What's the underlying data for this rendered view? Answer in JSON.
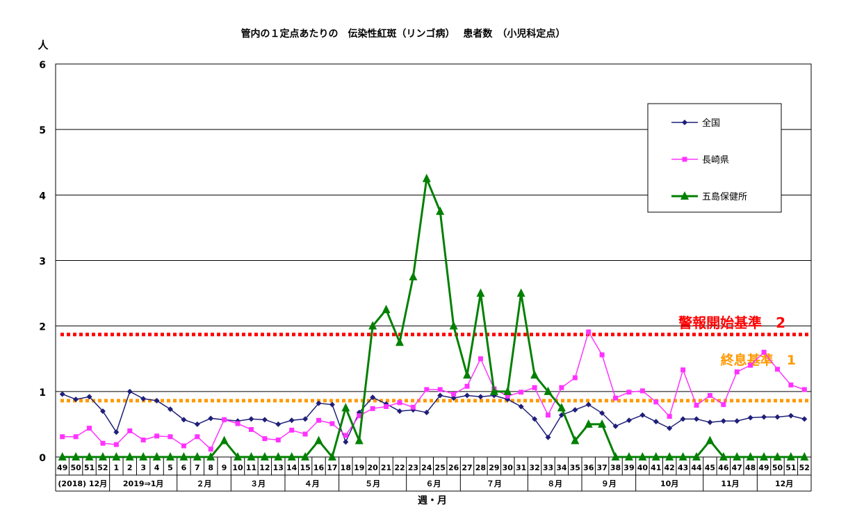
{
  "chart_data": {
    "type": "line",
    "title": "管内の１定点あたりの　伝染性紅斑（リンゴ病）　 患者数　（小児科定点）",
    "ylabel": "人",
    "xlabel": "週・月",
    "ylim": [
      0,
      6
    ],
    "yticks": [
      "0",
      "1",
      "2",
      "3",
      "4",
      "5",
      "6"
    ],
    "grid": true,
    "legend_position": "top-right",
    "weeks": [
      "49",
      "50",
      "51",
      "52",
      "1",
      "2",
      "3",
      "4",
      "5",
      "6",
      "7",
      "8",
      "9",
      "10",
      "11",
      "12",
      "13",
      "14",
      "15",
      "16",
      "17",
      "18",
      "19",
      "20",
      "21",
      "22",
      "23",
      "24",
      "25",
      "26",
      "27",
      "28",
      "29",
      "30",
      "31",
      "32",
      "33",
      "34",
      "35",
      "36",
      "37",
      "38",
      "39",
      "40",
      "41",
      "42",
      "43",
      "44",
      "45",
      "46",
      "47",
      "48",
      "49",
      "50",
      "51",
      "52"
    ],
    "month_groups": [
      {
        "label": "(2018) 12月",
        "start": 0,
        "end": 3
      },
      {
        "label": "2019⇒1月",
        "start": 4,
        "end": 8
      },
      {
        "label": "２月",
        "start": 9,
        "end": 12
      },
      {
        "label": "３月",
        "start": 13,
        "end": 16
      },
      {
        "label": "４月",
        "start": 17,
        "end": 20
      },
      {
        "label": "５月",
        "start": 21,
        "end": 25
      },
      {
        "label": "６月",
        "start": 26,
        "end": 29
      },
      {
        "label": "７月",
        "start": 30,
        "end": 34
      },
      {
        "label": "８月",
        "start": 35,
        "end": 38
      },
      {
        "label": "９月",
        "start": 39,
        "end": 42
      },
      {
        "label": "10月",
        "start": 43,
        "end": 47
      },
      {
        "label": "11月",
        "start": 48,
        "end": 51
      },
      {
        "label": "12月",
        "start": 52,
        "end": 55
      }
    ],
    "series": [
      {
        "name": "全国",
        "color": "#1f1f7a",
        "marker": "diamond",
        "values": [
          0.96,
          0.88,
          0.92,
          0.7,
          0.38,
          1.0,
          0.89,
          0.86,
          0.73,
          0.57,
          0.5,
          0.59,
          0.57,
          0.55,
          0.58,
          0.57,
          0.5,
          0.56,
          0.58,
          0.82,
          0.8,
          0.23,
          0.68,
          0.91,
          0.81,
          0.7,
          0.72,
          0.68,
          0.94,
          0.9,
          0.94,
          0.92,
          0.94,
          0.88,
          0.77,
          0.58,
          0.3,
          0.64,
          0.72,
          0.8,
          0.67,
          0.47,
          0.56,
          0.64,
          0.54,
          0.44,
          0.58,
          0.58,
          0.53,
          0.55,
          0.55,
          0.6,
          0.61,
          0.61,
          0.63,
          0.58
        ]
      },
      {
        "name": "長崎県",
        "color": "#ff33ff",
        "marker": "square",
        "values": [
          0.31,
          0.31,
          0.44,
          0.21,
          0.19,
          0.4,
          0.26,
          0.32,
          0.31,
          0.17,
          0.31,
          0.12,
          0.57,
          0.51,
          0.42,
          0.28,
          0.26,
          0.41,
          0.35,
          0.56,
          0.51,
          0.33,
          0.63,
          0.74,
          0.77,
          0.83,
          0.76,
          1.03,
          1.03,
          0.96,
          1.08,
          1.5,
          1.04,
          0.93,
          0.99,
          1.06,
          0.64,
          1.06,
          1.21,
          1.91,
          1.56,
          0.9,
          0.99,
          1.01,
          0.84,
          0.62,
          1.33,
          0.79,
          0.94,
          0.8,
          1.3,
          1.4,
          1.6,
          1.34,
          1.1,
          1.03
        ]
      },
      {
        "name": "五島保健所",
        "color": "#008000",
        "marker": "triangle",
        "values": [
          0,
          0,
          0,
          0,
          0,
          0,
          0,
          0,
          0,
          0,
          0,
          0,
          0.25,
          0,
          0,
          0,
          0,
          0,
          0,
          0.25,
          0,
          0.75,
          0.25,
          2.0,
          2.25,
          1.75,
          2.75,
          4.25,
          3.75,
          2.0,
          1.25,
          2.5,
          1.0,
          1.0,
          2.5,
          1.25,
          1.0,
          0.75,
          0.25,
          0.5,
          0.5,
          0,
          0,
          0,
          0,
          0,
          0,
          0,
          0.25,
          0,
          0,
          0,
          0,
          0,
          0,
          0
        ]
      }
    ],
    "thresholds": [
      {
        "label": "警報開始基準　2",
        "value": 1.87,
        "color": "#ff0000"
      },
      {
        "label": "終息基準　1",
        "value": 0.86,
        "color": "#ff9900"
      }
    ]
  }
}
